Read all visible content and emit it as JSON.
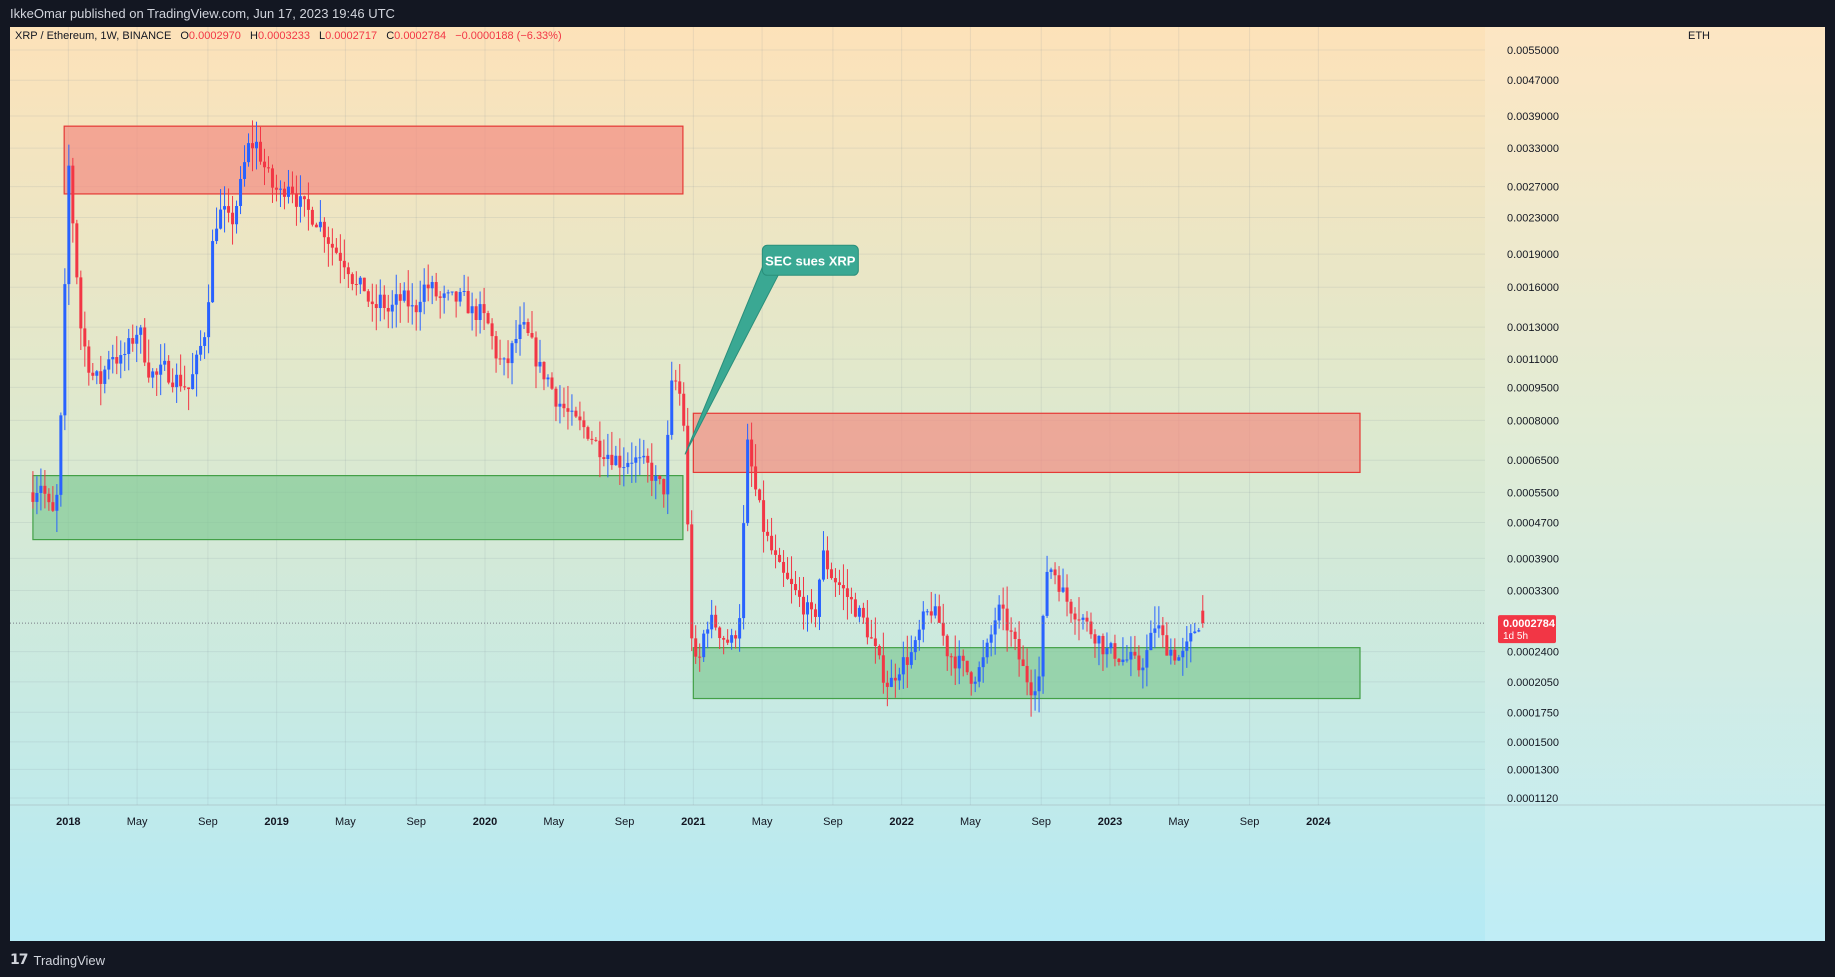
{
  "header": {
    "published": "IkkeOmar published on TradingView.com, Jun 17, 2023 19:46 UTC"
  },
  "footer": {
    "brand": "TradingView",
    "logo_icon": "tradingview-logo-icon"
  },
  "colors": {
    "up": "#2962ff",
    "down": "#f23645",
    "resistance_zone": "#f28b82",
    "support_zone": "#81c995",
    "callout": "#3aa893",
    "bg_top": "#fde2b9",
    "bg_bottom": "#b5eaf5"
  },
  "chart_data": {
    "type": "candlestick",
    "symbol": "XRP / Ethereum, 1W, BINANCE",
    "ohlc_labels": {
      "o": "O",
      "h": "H",
      "l": "L",
      "c": "C"
    },
    "ohlc": {
      "open": "0.0002970",
      "high": "0.0003233",
      "low": "0.0002717",
      "close": "0.0002784",
      "change": "−0.0000188 (−6.33%)"
    },
    "currency": "ETH",
    "y_scale": "log",
    "y_range": [
      0.000108,
      0.0062
    ],
    "x_range": [
      2017.72,
      2024.8
    ],
    "y_ticks": [
      "0.0055000",
      "0.0047000",
      "0.0039000",
      "0.0033000",
      "0.0027000",
      "0.0023000",
      "0.0019000",
      "0.0016000",
      "0.0013000",
      "0.0011000",
      "0.0009500",
      "0.0008000",
      "0.0006500",
      "0.0005500",
      "0.0004700",
      "0.0003900",
      "0.0003300",
      "0.0002400",
      "0.0002050",
      "0.0001750",
      "0.0001500",
      "0.0001300",
      "0.0001120"
    ],
    "x_ticks": [
      {
        "label": "2018",
        "t": 2018.0,
        "bold": true
      },
      {
        "label": "May",
        "t": 2018.33
      },
      {
        "label": "Sep",
        "t": 2018.67
      },
      {
        "label": "2019",
        "t": 2019.0,
        "bold": true
      },
      {
        "label": "May",
        "t": 2019.33
      },
      {
        "label": "Sep",
        "t": 2019.67
      },
      {
        "label": "2020",
        "t": 2020.0,
        "bold": true
      },
      {
        "label": "May",
        "t": 2020.33
      },
      {
        "label": "Sep",
        "t": 2020.67
      },
      {
        "label": "2021",
        "t": 2021.0,
        "bold": true
      },
      {
        "label": "May",
        "t": 2021.33
      },
      {
        "label": "Sep",
        "t": 2021.67
      },
      {
        "label": "2022",
        "t": 2022.0,
        "bold": true
      },
      {
        "label": "May",
        "t": 2022.33
      },
      {
        "label": "Sep",
        "t": 2022.67
      },
      {
        "label": "2023",
        "t": 2023.0,
        "bold": true
      },
      {
        "label": "May",
        "t": 2023.33
      },
      {
        "label": "Sep",
        "t": 2023.67
      },
      {
        "label": "2024",
        "t": 2024.0,
        "bold": true
      }
    ],
    "path": [
      [
        2017.83,
        0.00055
      ],
      [
        2017.87,
        0.00058
      ],
      [
        2017.91,
        0.0005
      ],
      [
        2017.94,
        0.00048
      ],
      [
        2017.97,
        0.0009
      ],
      [
        2018.0,
        0.0031
      ],
      [
        2018.03,
        0.002
      ],
      [
        2018.06,
        0.0013
      ],
      [
        2018.09,
        0.0011
      ],
      [
        2018.12,
        0.001
      ],
      [
        2018.16,
        0.00098
      ],
      [
        2018.2,
        0.00115
      ],
      [
        2018.25,
        0.00108
      ],
      [
        2018.3,
        0.0012
      ],
      [
        2018.34,
        0.0013
      ],
      [
        2018.38,
        0.00105
      ],
      [
        2018.42,
        0.001
      ],
      [
        2018.46,
        0.00105
      ],
      [
        2018.5,
        0.001
      ],
      [
        2018.54,
        0.00098
      ],
      [
        2018.58,
        0.00094
      ],
      [
        2018.62,
        0.0011
      ],
      [
        2018.66,
        0.0013
      ],
      [
        2018.7,
        0.0022
      ],
      [
        2018.74,
        0.0024
      ],
      [
        2018.78,
        0.0022
      ],
      [
        2018.82,
        0.0026
      ],
      [
        2018.86,
        0.0033
      ],
      [
        2018.9,
        0.0034
      ],
      [
        2018.94,
        0.003
      ],
      [
        2018.98,
        0.0027
      ],
      [
        2019.02,
        0.0026
      ],
      [
        2019.06,
        0.0028
      ],
      [
        2019.1,
        0.0025
      ],
      [
        2019.14,
        0.0024
      ],
      [
        2019.18,
        0.0023
      ],
      [
        2019.22,
        0.0022
      ],
      [
        2019.26,
        0.002
      ],
      [
        2019.3,
        0.0019
      ],
      [
        2019.34,
        0.0018
      ],
      [
        2019.38,
        0.0016
      ],
      [
        2019.42,
        0.0016
      ],
      [
        2019.46,
        0.0014
      ],
      [
        2019.5,
        0.0015
      ],
      [
        2019.54,
        0.0014
      ],
      [
        2019.58,
        0.0015
      ],
      [
        2019.62,
        0.0015
      ],
      [
        2019.66,
        0.0014
      ],
      [
        2019.7,
        0.0016
      ],
      [
        2019.74,
        0.0016
      ],
      [
        2019.78,
        0.0015
      ],
      [
        2019.82,
        0.0015
      ],
      [
        2019.86,
        0.0015
      ],
      [
        2019.9,
        0.0015
      ],
      [
        2019.94,
        0.0014
      ],
      [
        2019.98,
        0.0014
      ],
      [
        2020.02,
        0.0013
      ],
      [
        2020.06,
        0.0011
      ],
      [
        2020.1,
        0.00105
      ],
      [
        2020.14,
        0.0012
      ],
      [
        2020.18,
        0.0013
      ],
      [
        2020.22,
        0.0012
      ],
      [
        2020.26,
        0.00105
      ],
      [
        2020.3,
        0.001
      ],
      [
        2020.34,
        0.0009
      ],
      [
        2020.38,
        0.00085
      ],
      [
        2020.42,
        0.0008
      ],
      [
        2020.46,
        0.00078
      ],
      [
        2020.5,
        0.00075
      ],
      [
        2020.54,
        0.0007
      ],
      [
        2020.58,
        0.00068
      ],
      [
        2020.62,
        0.00066
      ],
      [
        2020.66,
        0.00064
      ],
      [
        2020.7,
        0.00066
      ],
      [
        2020.74,
        0.00064
      ],
      [
        2020.78,
        0.00063
      ],
      [
        2020.82,
        0.00058
      ],
      [
        2020.86,
        0.00056
      ],
      [
        2020.9,
        0.001
      ],
      [
        2020.93,
        0.00095
      ],
      [
        2020.96,
        0.00075
      ],
      [
        2020.98,
        0.00035
      ],
      [
        2021.0,
        0.00022
      ],
      [
        2021.03,
        0.00023
      ],
      [
        2021.06,
        0.00028
      ],
      [
        2021.1,
        0.00028
      ],
      [
        2021.14,
        0.00026
      ],
      [
        2021.18,
        0.00025
      ],
      [
        2021.22,
        0.00028
      ],
      [
        2021.26,
        0.0007
      ],
      [
        2021.3,
        0.00055
      ],
      [
        2021.34,
        0.00045
      ],
      [
        2021.38,
        0.0004
      ],
      [
        2021.42,
        0.00036
      ],
      [
        2021.46,
        0.00034
      ],
      [
        2021.5,
        0.00032
      ],
      [
        2021.54,
        0.0003
      ],
      [
        2021.58,
        0.00028
      ],
      [
        2021.62,
        0.0004
      ],
      [
        2021.66,
        0.00036
      ],
      [
        2021.7,
        0.00034
      ],
      [
        2021.74,
        0.00032
      ],
      [
        2021.78,
        0.0003
      ],
      [
        2021.82,
        0.00028
      ],
      [
        2021.86,
        0.00025
      ],
      [
        2021.9,
        0.00022
      ],
      [
        2021.94,
        0.0002
      ],
      [
        2021.98,
        0.00022
      ],
      [
        2022.02,
        0.00023
      ],
      [
        2022.06,
        0.00024
      ],
      [
        2022.1,
        0.00028
      ],
      [
        2022.14,
        0.0003
      ],
      [
        2022.18,
        0.00028
      ],
      [
        2022.22,
        0.00024
      ],
      [
        2022.26,
        0.00023
      ],
      [
        2022.3,
        0.00022
      ],
      [
        2022.34,
        0.00021
      ],
      [
        2022.38,
        0.00022
      ],
      [
        2022.42,
        0.00025
      ],
      [
        2022.46,
        0.0003
      ],
      [
        2022.5,
        0.00028
      ],
      [
        2022.54,
        0.00025
      ],
      [
        2022.58,
        0.00022
      ],
      [
        2022.62,
        0.0002
      ],
      [
        2022.66,
        0.00021
      ],
      [
        2022.7,
        0.00038
      ],
      [
        2022.74,
        0.00036
      ],
      [
        2022.78,
        0.00032
      ],
      [
        2022.82,
        0.0003
      ],
      [
        2022.86,
        0.00029
      ],
      [
        2022.9,
        0.00027
      ],
      [
        2022.94,
        0.00026
      ],
      [
        2022.98,
        0.00024
      ],
      [
        2023.02,
        0.00024
      ],
      [
        2023.06,
        0.00023
      ],
      [
        2023.1,
        0.00023
      ],
      [
        2023.14,
        0.00022
      ],
      [
        2023.18,
        0.00024
      ],
      [
        2023.22,
        0.00028
      ],
      [
        2023.26,
        0.00025
      ],
      [
        2023.3,
        0.00024
      ],
      [
        2023.34,
        0.00023
      ],
      [
        2023.38,
        0.00025
      ],
      [
        2023.42,
        0.00028
      ],
      [
        2023.46,
        0.000278
      ]
    ],
    "last_price": {
      "value": "0.0002784",
      "countdown": "1d 5h",
      "raw": 0.0002784
    },
    "zones": [
      {
        "name": "resistance-zone-2018",
        "kind": "resistance",
        "t0": 2017.98,
        "t1": 2020.95,
        "p_low": 0.0026,
        "p_high": 0.0037
      },
      {
        "name": "support-zone-2018",
        "kind": "support",
        "t0": 2017.83,
        "t1": 2020.95,
        "p_low": 0.00043,
        "p_high": 0.0006
      },
      {
        "name": "resistance-zone-2021",
        "kind": "resistance",
        "t0": 2021.0,
        "t1": 2024.2,
        "p_low": 0.00061,
        "p_high": 0.00083
      },
      {
        "name": "support-zone-2021",
        "kind": "support",
        "t0": 2021.0,
        "t1": 2024.2,
        "p_low": 0.000188,
        "p_high": 0.000245
      }
    ],
    "annotation": {
      "text": "SEC sues XRP",
      "anchor_t": 2020.96,
      "anchor_p": 0.00067,
      "label_t": 2021.36,
      "label_p": 0.00185
    }
  }
}
